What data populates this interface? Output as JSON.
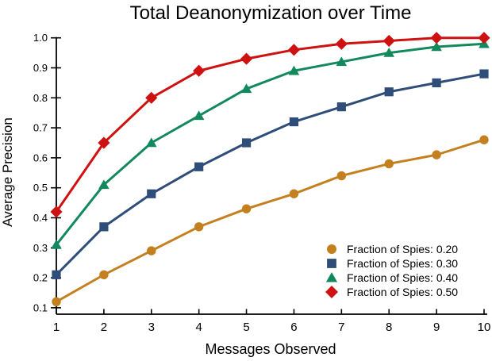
{
  "figure": {
    "background": "#ffffff",
    "text_color": "#000000",
    "axis_color": "#000000"
  },
  "chart_data": {
    "type": "line",
    "title": "Total Deanonymization over Time",
    "xlabel": "Messages Observed",
    "ylabel": "Average Precision",
    "grid": false,
    "legend_position": "lower right",
    "xlim": [
      1,
      10
    ],
    "ylim": [
      0.1,
      1.0
    ],
    "x": [
      1,
      2,
      3,
      4,
      5,
      6,
      7,
      8,
      9,
      10
    ],
    "x_tick_labels": [
      "1",
      "2",
      "3",
      "4",
      "5",
      "6",
      "7",
      "8",
      "9",
      "10"
    ],
    "y_tick_values": [
      0.1,
      0.2,
      0.3,
      0.4,
      0.5,
      0.6,
      0.7,
      0.8,
      0.9,
      1.0
    ],
    "y_tick_labels": [
      "0.1",
      "0.2",
      "0.3",
      "0.4",
      "0.5",
      "0.6",
      "0.7",
      "0.8",
      "0.9",
      "1.0"
    ],
    "series": [
      {
        "name": "Fraction of Spies: 0.20",
        "marker": "circle",
        "color": "#C4801E",
        "values": [
          0.12,
          0.21,
          0.29,
          0.37,
          0.43,
          0.48,
          0.54,
          0.58,
          0.61,
          0.66
        ]
      },
      {
        "name": "Fraction of Spies: 0.30",
        "marker": "square",
        "color": "#2E4D78",
        "values": [
          0.21,
          0.37,
          0.48,
          0.57,
          0.65,
          0.72,
          0.77,
          0.82,
          0.85,
          0.88
        ]
      },
      {
        "name": "Fraction of Spies: 0.40",
        "marker": "triangle",
        "color": "#12895C",
        "values": [
          0.31,
          0.51,
          0.65,
          0.74,
          0.83,
          0.89,
          0.92,
          0.95,
          0.97,
          0.98
        ]
      },
      {
        "name": "Fraction of Spies: 0.50",
        "marker": "diamond",
        "color": "#CE1212",
        "values": [
          0.42,
          0.65,
          0.8,
          0.89,
          0.93,
          0.96,
          0.98,
          0.99,
          1.0,
          1.0
        ]
      }
    ]
  }
}
